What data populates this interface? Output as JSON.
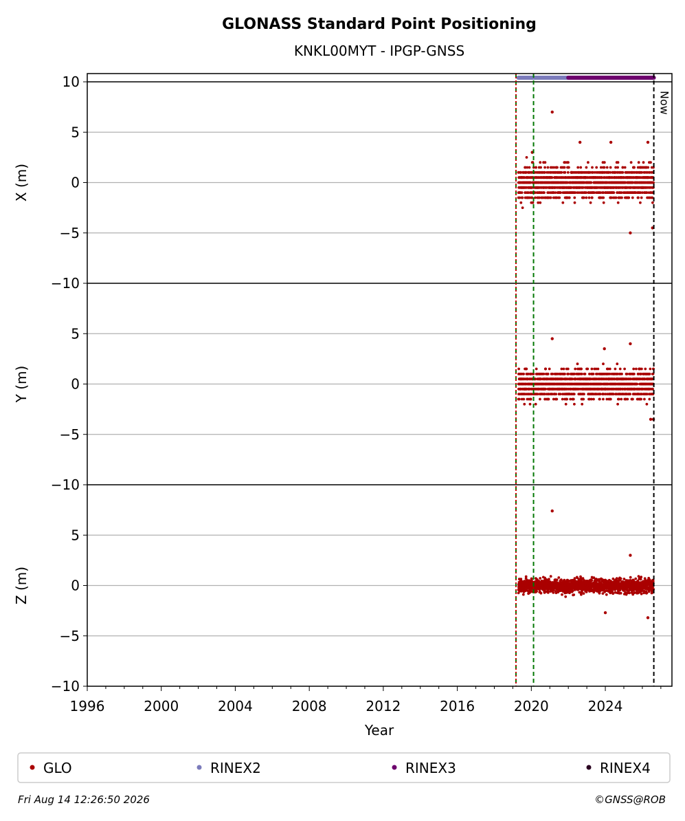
{
  "chart_data": {
    "type": "scatter",
    "title": "GLONASS Standard Point Positioning",
    "subtitle": "KNKL00MYT - IPGP-GNSS",
    "xlabel": "Year",
    "xlim": [
      1996,
      2027.6
    ],
    "xticks": [
      "1996",
      "2000",
      "2004",
      "2008",
      "2012",
      "2016",
      "2020",
      "2024"
    ],
    "grid": true,
    "now_label": "Now",
    "now_year": 2026.62,
    "vertical_markers": [
      {
        "year": 2019.17,
        "color": "#007700",
        "style": "dashed"
      },
      {
        "year": 2019.17,
        "color": "#cc0000",
        "style": "dotted"
      },
      {
        "year": 2020.12,
        "color": "#007700",
        "style": "dashed"
      }
    ],
    "data_range": {
      "start": 2019.3,
      "end": 2026.6
    },
    "panels": [
      {
        "ylabel": "X (m)",
        "ylim": [
          -10,
          10
        ],
        "yticks": [
          "10",
          "5",
          "0",
          "−5",
          "−10"
        ],
        "series": [
          {
            "name": "GLO",
            "color": "#aa0000",
            "spread": 1.35,
            "quantized": true,
            "points": [
              [
                2021.13,
                7.0
              ],
              [
                2025.35,
                -5.0
              ],
              [
                2026.55,
                -4.5
              ],
              [
                2024.3,
                4.0
              ],
              [
                2022.63,
                4.0
              ],
              [
                2026.3,
                4.0
              ],
              [
                2020.05,
                3.0
              ]
            ]
          }
        ]
      },
      {
        "ylabel": "Y (m)",
        "ylim": [
          -10,
          10
        ],
        "yticks": [
          "",
          "5",
          "0",
          "−5",
          "−10"
        ],
        "series": [
          {
            "name": "GLO",
            "color": "#aa0000",
            "spread": 1.2,
            "quantized": true,
            "points": [
              [
                2021.13,
                4.5
              ],
              [
                2025.35,
                4.0
              ],
              [
                2023.95,
                3.5
              ],
              [
                2026.45,
                -3.5
              ],
              [
                2026.6,
                -3.5
              ]
            ]
          }
        ]
      },
      {
        "ylabel": "Z (m)",
        "ylim": [
          -10,
          10
        ],
        "yticks": [
          "",
          "5",
          "0",
          "−5",
          "−10"
        ],
        "series": [
          {
            "name": "GLO",
            "color": "#aa0000",
            "spread": 0.6,
            "quantized": false,
            "points": [
              [
                2021.13,
                7.4
              ],
              [
                2026.3,
                -3.2
              ],
              [
                2024.0,
                -2.7
              ],
              [
                2025.35,
                3.0
              ]
            ]
          }
        ]
      }
    ],
    "rinex_bars": [
      {
        "name": "RINEX2",
        "color": "#7b7bbb",
        "start": 2019.3,
        "end": 2022.0
      },
      {
        "name": "RINEX3",
        "color": "#6d006d",
        "start": 2022.0,
        "end": 2026.62
      }
    ],
    "legend": {
      "placement": "bottom",
      "entries": [
        {
          "name": "GLO",
          "color": "#aa0000"
        },
        {
          "name": "RINEX2",
          "color": "#7b7bbb"
        },
        {
          "name": "RINEX3",
          "color": "#6d006d"
        },
        {
          "name": "RINEX4",
          "color": "#2a0020"
        }
      ]
    }
  },
  "footer": {
    "timestamp": "Fri Aug 14 12:26:50 2026",
    "credit": "©GNSS@ROB"
  }
}
